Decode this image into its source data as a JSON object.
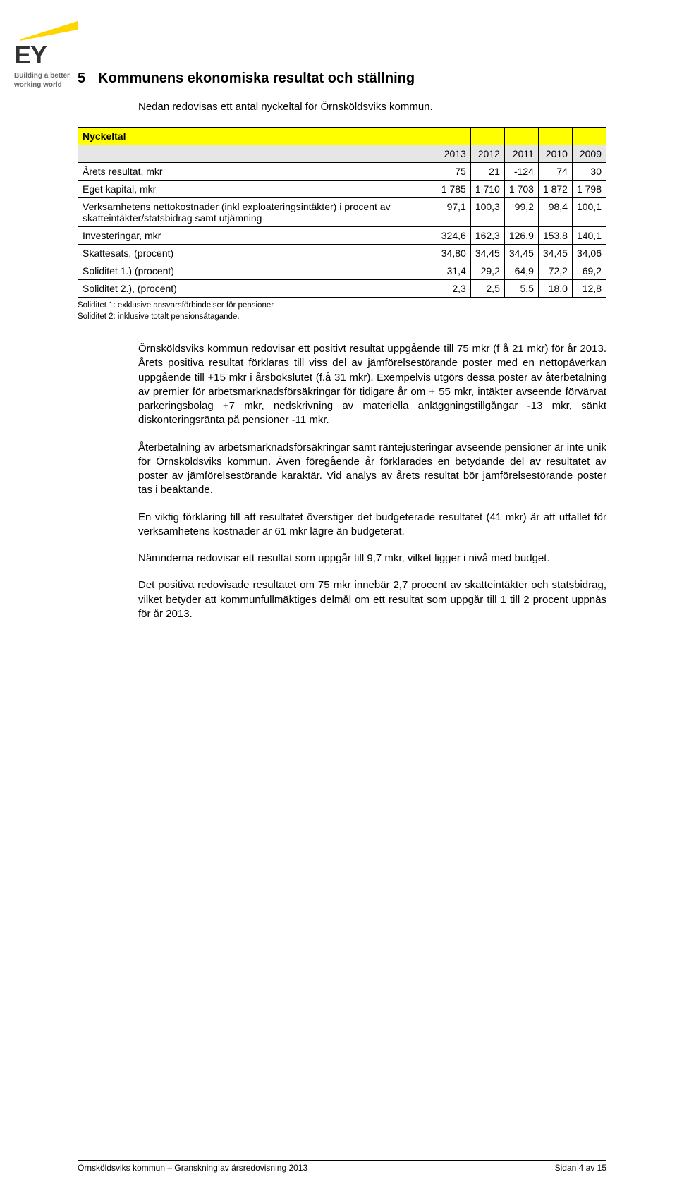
{
  "logo": {
    "beam_color": "#ffd500",
    "ey_text": "EY",
    "tagline_l1": "Building a better",
    "tagline_l2": "working world"
  },
  "heading": {
    "number": "5",
    "title": "Kommunens ekonomiska resultat och ställning"
  },
  "intro": "Nedan redovisas ett antal nyckeltal för Örnsköldsviks kommun.",
  "table": {
    "header_label": "Nyckeltal",
    "years": [
      "2013",
      "2012",
      "2011",
      "2010",
      "2009"
    ],
    "rows": [
      {
        "label": "Årets resultat, mkr",
        "vals": [
          "75",
          "21",
          "-124",
          "74",
          "30"
        ]
      },
      {
        "label": "Eget kapital, mkr",
        "vals": [
          "1 785",
          "1 710",
          "1 703",
          "1 872",
          "1 798"
        ]
      },
      {
        "label": "Verksamhetens nettokostnader (inkl exploateringsintäkter) i procent av skatteintäkter/statsbidrag samt utjämning",
        "vals": [
          "97,1",
          "100,3",
          "99,2",
          "98,4",
          "100,1"
        ]
      },
      {
        "label": "Investeringar, mkr",
        "vals": [
          "324,6",
          "162,3",
          "126,9",
          "153,8",
          "140,1"
        ]
      },
      {
        "label": "Skattesats, (procent)",
        "vals": [
          "34,80",
          "34,45",
          "34,45",
          "34,45",
          "34,06"
        ]
      },
      {
        "label": "Soliditet 1.) (procent)",
        "vals": [
          "31,4",
          "29,2",
          "64,9",
          "72,2",
          "69,2"
        ]
      },
      {
        "label": "Soliditet 2.), (procent)",
        "vals": [
          "2,3",
          "2,5",
          "5,5",
          "18,0",
          "12,8"
        ]
      }
    ],
    "note_l1": "Soliditet 1: exklusive ansvarsförbindelser för pensioner",
    "note_l2": "Soliditet 2: inklusive totalt pensionsåtagande."
  },
  "paragraphs": [
    "Örnsköldsviks kommun redovisar ett positivt resultat uppgående till 75 mkr (f å 21 mkr) för år 2013. Årets positiva resultat förklaras till viss del av jämförelsestörande poster med en nettopåverkan uppgående till +15 mkr i årsbokslutet (f.å 31 mkr). Exempelvis utgörs dessa poster av återbetalning av premier för arbetsmarknadsförsäkringar för tidigare år om + 55 mkr, intäkter avseende förvärvat parkeringsbolag +7 mkr, nedskrivning av materiella anläggningstillgångar -13 mkr, sänkt diskonteringsränta på pensioner -11 mkr.",
    "Återbetalning av arbetsmarknadsförsäkringar samt räntejusteringar avseende pensioner är inte unik för Örnsköldsviks kommun. Även föregående år förklarades en betydande del av resultatet av poster av jämförelsestörande karaktär. Vid analys av årets resultat bör jämförelsestörande poster tas i beaktande.",
    "En viktig förklaring till att resultatet överstiger det budgeterade resultatet (41 mkr) är att utfallet för verksamhetens kostnader är 61 mkr lägre än budgeterat.",
    "Nämnderna redovisar ett resultat som uppgår till 9,7 mkr, vilket ligger i nivå med budget.",
    "Det positiva redovisade resultatet om 75 mkr innebär 2,7 procent av skatteintäkter och statsbidrag, vilket betyder att kommunfullmäktiges delmål om ett resultat som uppgår till 1 till 2 procent uppnås för år 2013."
  ],
  "footer": {
    "left": "Örnsköldsviks kommun – Granskning av årsredovisning 2013",
    "right": "Sidan 4 av 15"
  },
  "colors": {
    "highlight_row": "#ffff00",
    "subheader_row": "#e6e6e6",
    "border": "#000000",
    "text": "#000000"
  }
}
